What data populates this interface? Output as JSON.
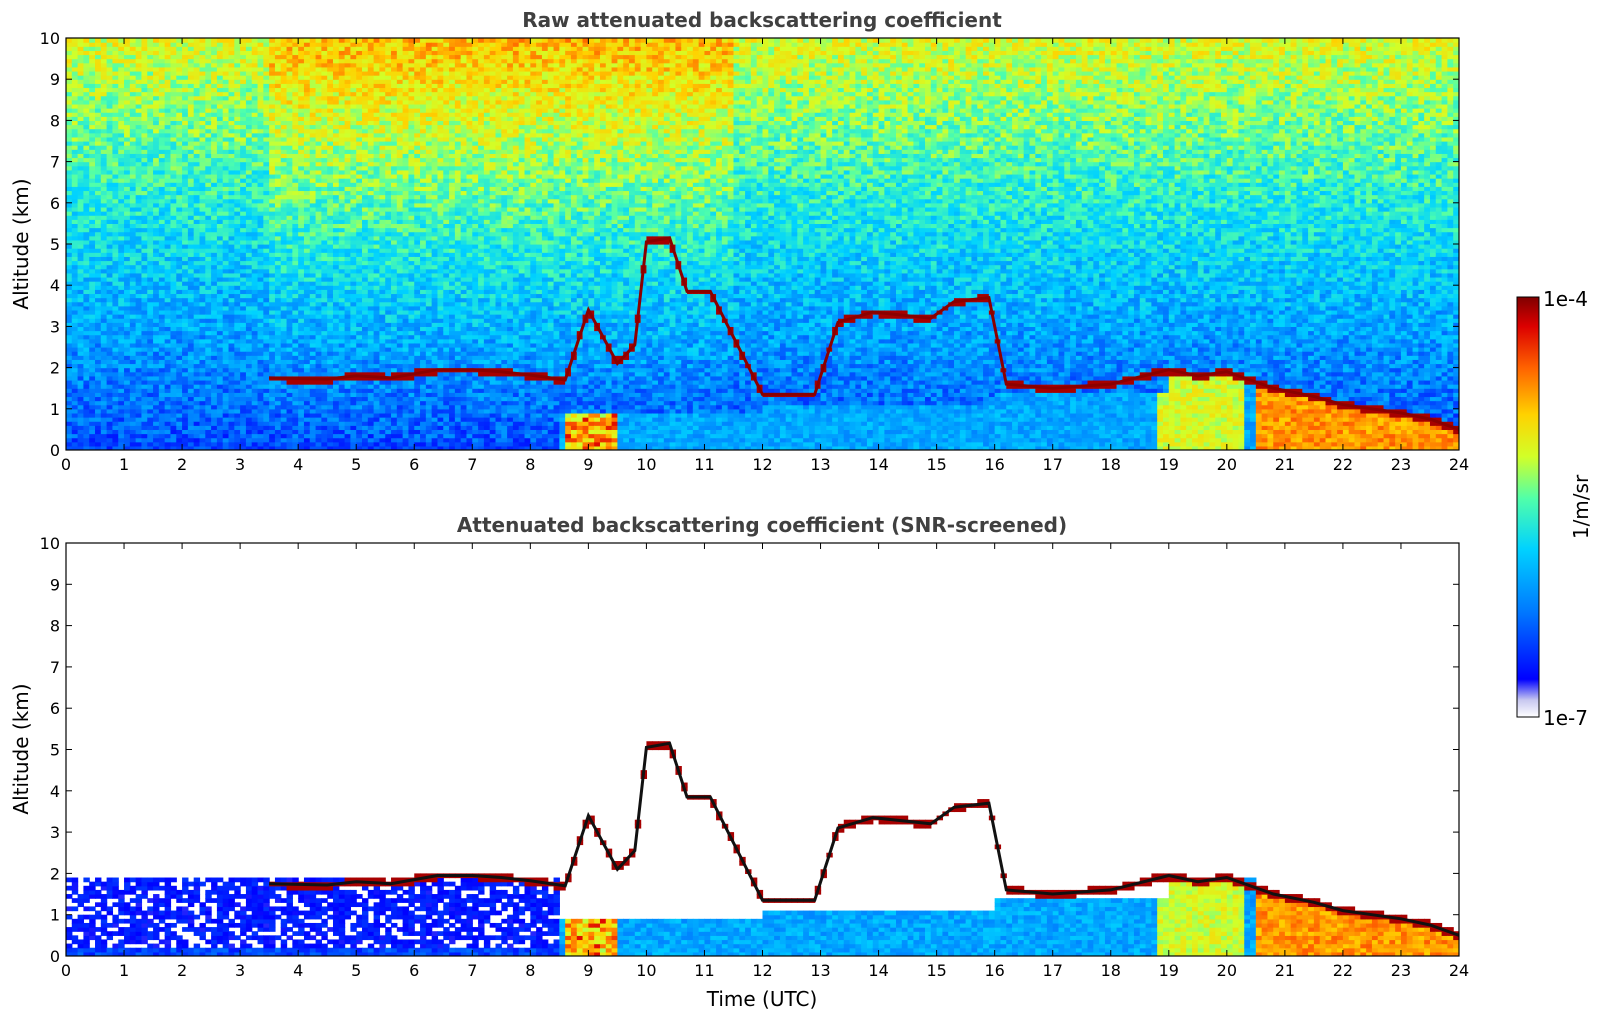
{
  "chart_data": [
    {
      "type": "heatmap",
      "title": "Raw attenuated backscattering coefficient",
      "xlabel": "",
      "ylabel": "Altitude (km)",
      "xlim": [
        0,
        24
      ],
      "ylim": [
        0,
        10
      ],
      "x_ticks": [
        "0",
        "1",
        "2",
        "3",
        "4",
        "5",
        "6",
        "7",
        "8",
        "9",
        "10",
        "11",
        "12",
        "13",
        "14",
        "15",
        "16",
        "17",
        "18",
        "19",
        "20",
        "21",
        "22",
        "23",
        "24"
      ],
      "y_ticks": [
        "0",
        "1",
        "2",
        "3",
        "4",
        "5",
        "6",
        "7",
        "8",
        "9",
        "10"
      ],
      "screened": false,
      "cloud_layer": [
        {
          "t": 3.5,
          "alt": 1.75
        },
        {
          "t": 4.5,
          "alt": 1.72
        },
        {
          "t": 5.0,
          "alt": 1.8
        },
        {
          "t": 5.6,
          "alt": 1.75
        },
        {
          "t": 6.0,
          "alt": 1.85
        },
        {
          "t": 6.4,
          "alt": 1.95
        },
        {
          "t": 7.0,
          "alt": 1.95
        },
        {
          "t": 7.5,
          "alt": 1.9
        },
        {
          "t": 8.0,
          "alt": 1.82
        },
        {
          "t": 8.6,
          "alt": 1.7
        },
        {
          "t": 9.0,
          "alt": 3.4
        },
        {
          "t": 9.5,
          "alt": 2.1
        },
        {
          "t": 9.8,
          "alt": 2.55
        },
        {
          "t": 10.0,
          "alt": 5.05
        },
        {
          "t": 10.4,
          "alt": 5.15
        },
        {
          "t": 10.7,
          "alt": 3.85
        },
        {
          "t": 11.1,
          "alt": 3.85
        },
        {
          "t": 12.0,
          "alt": 1.35
        },
        {
          "t": 12.9,
          "alt": 1.35
        },
        {
          "t": 13.3,
          "alt": 3.1
        },
        {
          "t": 13.9,
          "alt": 3.35
        },
        {
          "t": 14.9,
          "alt": 3.2
        },
        {
          "t": 15.3,
          "alt": 3.6
        },
        {
          "t": 15.9,
          "alt": 3.7
        },
        {
          "t": 16.2,
          "alt": 1.6
        },
        {
          "t": 17.0,
          "alt": 1.5
        },
        {
          "t": 18.0,
          "alt": 1.6
        },
        {
          "t": 19.0,
          "alt": 1.95
        },
        {
          "t": 19.5,
          "alt": 1.8
        },
        {
          "t": 20.0,
          "alt": 1.9
        },
        {
          "t": 20.8,
          "alt": 1.5
        },
        {
          "t": 21.5,
          "alt": 1.3
        },
        {
          "t": 22.0,
          "alt": 1.1
        },
        {
          "t": 22.5,
          "alt": 1.0
        },
        {
          "t": 23.0,
          "alt": 0.9
        },
        {
          "t": 23.5,
          "alt": 0.75
        },
        {
          "t": 24.0,
          "alt": 0.5
        }
      ]
    },
    {
      "type": "heatmap",
      "title": "Attenuated backscattering coefficient (SNR-screened)",
      "xlabel": "Time (UTC)",
      "ylabel": "Altitude (km)",
      "xlim": [
        0,
        24
      ],
      "ylim": [
        0,
        10
      ],
      "x_ticks": [
        "0",
        "1",
        "2",
        "3",
        "4",
        "5",
        "6",
        "7",
        "8",
        "9",
        "10",
        "11",
        "12",
        "13",
        "14",
        "15",
        "16",
        "17",
        "18",
        "19",
        "20",
        "21",
        "22",
        "23",
        "24"
      ],
      "y_ticks": [
        "0",
        "1",
        "2",
        "3",
        "4",
        "5",
        "6",
        "7",
        "8",
        "9",
        "10"
      ],
      "screened": true
    }
  ],
  "colorbar": {
    "label": "1/m/sr",
    "max_label": "1e-4",
    "min_label": "1e-7",
    "colors": [
      "#ffffff",
      "#c8c8f0",
      "#0000ff",
      "#0078ff",
      "#00d2ff",
      "#50ffaa",
      "#d2ff28",
      "#ffd200",
      "#ff6400",
      "#dc0000",
      "#800000"
    ]
  }
}
